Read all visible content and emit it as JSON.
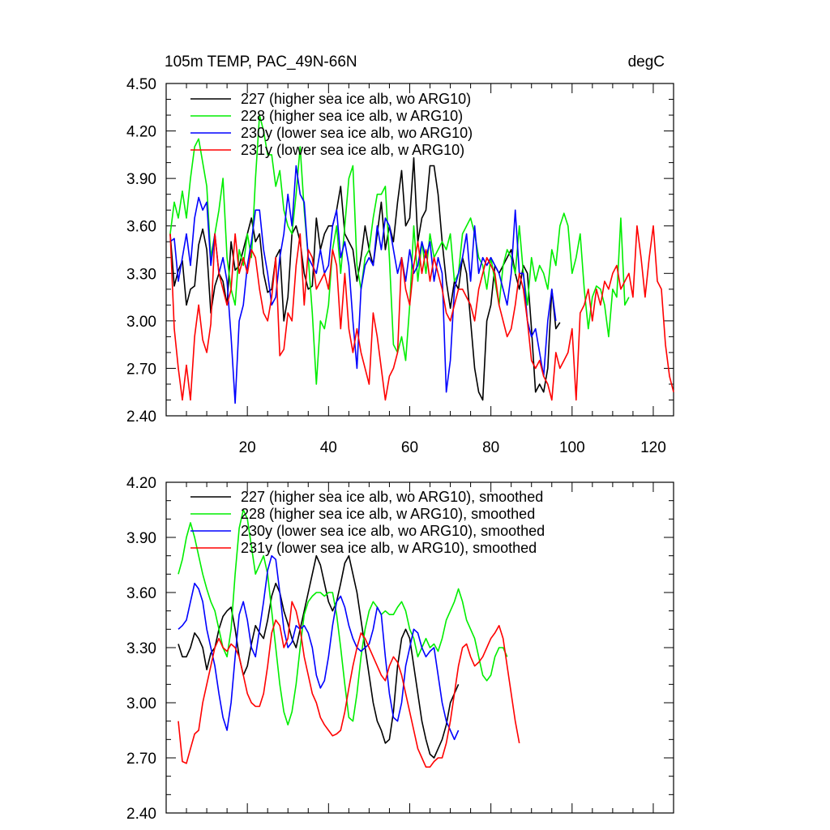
{
  "title": "105m TEMP, PAC_49N-66N",
  "units": "degC",
  "colors": {
    "227": "#000000",
    "228": "#00ee00",
    "230y": "#0000ff",
    "231y": "#ff0000"
  },
  "chart_data": [
    {
      "type": "line",
      "id": "raw",
      "xlim": [
        0,
        125
      ],
      "ylim": [
        2.4,
        4.5
      ],
      "yticks": [
        "2.40",
        "2.70",
        "3.00",
        "3.30",
        "3.60",
        "3.90",
        "4.20",
        "4.50"
      ],
      "xticks": [
        "20",
        "40",
        "60",
        "80",
        "100",
        "120"
      ],
      "legend": [
        "227 (higher sea ice alb, wo ARG10)",
        "228 (higher sea ice alb, w ARG10)",
        "230y (lower sea ice alb, wo ARG10)",
        "231y (lower sea ice alb, w ARG10)"
      ],
      "series": [
        {
          "name": "227",
          "x0": 1,
          "values": [
            3.55,
            3.22,
            3.32,
            3.38,
            3.1,
            3.2,
            3.22,
            3.48,
            3.58,
            3.45,
            3.05,
            3.22,
            3.3,
            3.25,
            3.1,
            3.5,
            3.32,
            3.35,
            3.45,
            3.55,
            3.65,
            3.5,
            3.55,
            3.3,
            3.18,
            3.2,
            3.4,
            3.45,
            3.0,
            3.15,
            3.55,
            3.6,
            3.5,
            3.3,
            3.2,
            3.22,
            3.65,
            3.45,
            3.55,
            3.6,
            3.6,
            3.7,
            3.85,
            3.55,
            3.5,
            3.45,
            3.25,
            3.4,
            3.6,
            3.45,
            3.35,
            3.55,
            3.75,
            3.45,
            3.6,
            3.5,
            3.75,
            3.95,
            3.6,
            3.65,
            4.03,
            3.5,
            3.65,
            3.7,
            3.98,
            3.98,
            3.8,
            3.5,
            3.25,
            3.08,
            3.25,
            3.2,
            3.4,
            3.3,
            3.0,
            2.7,
            2.55,
            2.5,
            3.0,
            3.1,
            3.35,
            3.3,
            3.35,
            3.4,
            3.45,
            3.3,
            3.2,
            3.35,
            3.3,
            2.95,
            2.55,
            2.6,
            2.55,
            2.7,
            3.2,
            2.95,
            2.99
          ]
        },
        {
          "name": "228",
          "x0": 1,
          "values": [
            3.55,
            3.75,
            3.65,
            3.82,
            3.65,
            3.9,
            4.1,
            4.15,
            4.0,
            3.85,
            3.4,
            3.55,
            3.7,
            3.9,
            3.4,
            3.2,
            3.1,
            3.45,
            3.35,
            3.55,
            3.4,
            3.9,
            4.3,
            4.2,
            4.05,
            4.05,
            3.85,
            3.95,
            3.7,
            3.6,
            3.55,
            3.8,
            4.1,
            3.7,
            3.4,
            3.05,
            2.6,
            3.0,
            2.95,
            3.1,
            3.45,
            3.6,
            3.3,
            3.6,
            3.9,
            3.98,
            3.35,
            3.2,
            3.4,
            3.45,
            3.65,
            3.8,
            3.8,
            3.85,
            3.4,
            2.85,
            2.8,
            2.9,
            2.75,
            3.1,
            3.6,
            3.25,
            3.5,
            3.3,
            3.55,
            3.4,
            3.45,
            3.5,
            3.45,
            3.55,
            3.25,
            3.3,
            3.55,
            3.6,
            3.65,
            3.55,
            3.4,
            3.35,
            3.2,
            3.4,
            3.25,
            3.1,
            3.35,
            3.45,
            3.4,
            3.3,
            3.6,
            3.3,
            3.1,
            3.4,
            3.25,
            3.35,
            3.3,
            3.2,
            3.45,
            3.35,
            3.6,
            3.68,
            3.6,
            3.3,
            3.4,
            3.55,
            3.2,
            2.95,
            3.15,
            3.22,
            3.2,
            3.1,
            2.9,
            3.2,
            3.15,
            3.65,
            3.1,
            3.15
          ]
        },
        {
          "name": "230y",
          "x0": 1,
          "values": [
            3.5,
            3.52,
            3.25,
            3.4,
            3.55,
            3.35,
            3.65,
            3.78,
            3.7,
            3.75,
            3.35,
            3.55,
            3.3,
            3.4,
            3.25,
            2.9,
            2.48,
            3.0,
            3.1,
            3.35,
            3.5,
            3.7,
            3.7,
            3.45,
            3.3,
            3.1,
            3.15,
            3.4,
            3.55,
            3.8,
            3.6,
            3.98,
            3.8,
            3.75,
            3.4,
            3.35,
            3.3,
            3.45,
            3.3,
            3.35,
            3.6,
            3.7,
            3.4,
            3.5,
            3.35,
            3.0,
            2.7,
            3.2,
            3.35,
            3.4,
            3.35,
            3.6,
            3.45,
            3.65,
            3.6,
            3.45,
            3.3,
            3.4,
            3.25,
            3.45,
            3.3,
            3.35,
            3.5,
            3.4,
            3.5,
            3.25,
            3.4,
            3.3,
            2.55,
            2.75,
            3.2,
            3.3,
            3.4,
            3.55,
            3.25,
            3.6,
            3.3,
            3.4,
            3.35,
            3.4,
            3.35,
            3.3,
            3.2,
            3.1,
            3.3,
            3.7,
            3.3,
            3.3,
            3.0,
            2.9,
            2.95,
            2.8,
            2.65,
            3.0,
            3.2,
            3.0
          ]
        },
        {
          "name": "231y",
          "x0": 1,
          "values": [
            3.55,
            2.95,
            2.7,
            2.5,
            2.72,
            2.5,
            2.9,
            3.1,
            2.88,
            2.8,
            2.98,
            3.55,
            3.3,
            3.2,
            3.1,
            3.2,
            3.55,
            3.3,
            3.4,
            3.3,
            3.45,
            3.4,
            3.2,
            3.05,
            3.0,
            3.15,
            3.4,
            2.78,
            2.82,
            3.05,
            3.0,
            3.35,
            3.55,
            3.1,
            3.45,
            3.4,
            3.2,
            3.25,
            3.3,
            3.2,
            3.45,
            3.35,
            2.95,
            3.3,
            2.95,
            2.8,
            2.95,
            2.8,
            2.7,
            2.6,
            3.05,
            2.9,
            2.7,
            2.5,
            2.65,
            2.7,
            2.8,
            3.4,
            3.2,
            3.1,
            3.35,
            3.5,
            3.3,
            3.45,
            3.25,
            3.4,
            3.3,
            3.2,
            3.05,
            3.0,
            3.1,
            3.2,
            3.2,
            3.15,
            3.1,
            3.0,
            3.2,
            3.3,
            3.4,
            3.35,
            3.3,
            3.1,
            3.0,
            2.9,
            2.95,
            3.1,
            3.3,
            3.2,
            3.0,
            2.75,
            2.7,
            2.75,
            2.65,
            2.6,
            2.5,
            2.8,
            2.7,
            2.75,
            2.8,
            2.95,
            2.5,
            3.05,
            3.1,
            3.2,
            3.0,
            3.2,
            3.1,
            3.25,
            3.2,
            3.3,
            3.35,
            3.2,
            3.25,
            3.3,
            3.15,
            3.6,
            3.4,
            3.15,
            3.4,
            3.6,
            3.25,
            3.2,
            2.85,
            2.65,
            2.55
          ]
        }
      ]
    },
    {
      "type": "line",
      "id": "smoothed",
      "xlim": [
        0,
        125
      ],
      "ylim": [
        2.4,
        4.2
      ],
      "yticks": [
        "2.40",
        "2.70",
        "3.00",
        "3.30",
        "3.60",
        "3.90",
        "4.20"
      ],
      "xticks": [],
      "legend": [
        "227 (higher sea ice alb, wo ARG10), smoothed",
        "228 (higher sea ice alb, w ARG10), smoothed",
        "230y (lower sea ice alb, wo ARG10), smoothed",
        "231y (lower sea ice alb, w ARG10), smoothed"
      ],
      "series": [
        {
          "name": "227",
          "x0": 3,
          "values": [
            3.32,
            3.25,
            3.25,
            3.3,
            3.38,
            3.35,
            3.3,
            3.18,
            3.27,
            3.3,
            3.4,
            3.47,
            3.5,
            3.52,
            3.4,
            3.25,
            3.15,
            3.2,
            3.32,
            3.42,
            3.38,
            3.35,
            3.45,
            3.58,
            3.65,
            3.6,
            3.5,
            3.43,
            3.35,
            3.3,
            3.4,
            3.5,
            3.6,
            3.7,
            3.8,
            3.75,
            3.65,
            3.55,
            3.5,
            3.55,
            3.65,
            3.76,
            3.8,
            3.7,
            3.6,
            3.45,
            3.3,
            3.15,
            3.0,
            2.9,
            2.85,
            2.78,
            2.8,
            2.95,
            3.2,
            3.35,
            3.4,
            3.35,
            3.2,
            3.05,
            2.9,
            2.8,
            2.72,
            2.7,
            2.75,
            2.8,
            2.88,
            3.0,
            3.05,
            3.1
          ]
        },
        {
          "name": "228",
          "x0": 3,
          "values": [
            3.7,
            3.78,
            3.9,
            3.98,
            3.9,
            3.8,
            3.7,
            3.62,
            3.55,
            3.5,
            3.4,
            3.3,
            3.25,
            3.4,
            3.7,
            3.95,
            4.05,
            4.0,
            3.85,
            3.7,
            3.75,
            3.8,
            3.7,
            3.5,
            3.3,
            3.1,
            2.95,
            2.88,
            2.95,
            3.1,
            3.3,
            3.48,
            3.55,
            3.58,
            3.6,
            3.6,
            3.58,
            3.6,
            3.6,
            3.48,
            3.3,
            3.1,
            2.92,
            2.9,
            3.05,
            3.25,
            3.4,
            3.5,
            3.55,
            3.52,
            3.48,
            3.5,
            3.48,
            3.48,
            3.52,
            3.55,
            3.5,
            3.4,
            3.35,
            3.25,
            3.3,
            3.35,
            3.3,
            3.32,
            3.28,
            3.35,
            3.45,
            3.5,
            3.55,
            3.62,
            3.55,
            3.45,
            3.4,
            3.35,
            3.25,
            3.15,
            3.12,
            3.15,
            3.25,
            3.3,
            3.3,
            3.25
          ]
        },
        {
          "name": "230y",
          "x0": 3,
          "values": [
            3.4,
            3.42,
            3.45,
            3.55,
            3.65,
            3.62,
            3.55,
            3.4,
            3.3,
            3.2,
            3.05,
            2.92,
            2.85,
            3.0,
            3.25,
            3.48,
            3.55,
            3.45,
            3.3,
            3.25,
            3.4,
            3.55,
            3.72,
            3.8,
            3.78,
            3.6,
            3.4,
            3.3,
            3.33,
            3.42,
            3.4,
            3.42,
            3.38,
            3.3,
            3.15,
            3.08,
            3.12,
            3.25,
            3.42,
            3.55,
            3.58,
            3.52,
            3.42,
            3.35,
            3.3,
            3.28,
            3.3,
            3.32,
            3.4,
            3.52,
            3.48,
            3.25,
            3.05,
            2.92,
            2.9,
            3.0,
            3.2,
            3.3,
            3.4,
            3.38,
            3.3,
            3.25,
            3.28,
            3.3,
            3.15,
            3.0,
            2.9,
            2.85,
            2.8,
            2.85
          ]
        },
        {
          "name": "231y",
          "x0": 3,
          "values": [
            2.9,
            2.68,
            2.67,
            2.75,
            2.83,
            2.85,
            3.0,
            3.1,
            3.2,
            3.3,
            3.35,
            3.3,
            3.28,
            3.32,
            3.3,
            3.25,
            3.15,
            3.05,
            3.0,
            2.98,
            2.98,
            3.05,
            3.2,
            3.38,
            3.45,
            3.42,
            3.3,
            3.35,
            3.55,
            3.5,
            3.4,
            3.25,
            3.15,
            3.05,
            3.0,
            2.92,
            2.88,
            2.85,
            2.82,
            2.83,
            2.85,
            2.95,
            3.08,
            3.2,
            3.3,
            3.38,
            3.35,
            3.3,
            3.25,
            3.2,
            3.15,
            3.12,
            3.2,
            3.25,
            3.22,
            3.15,
            3.05,
            2.95,
            2.85,
            2.75,
            2.7,
            2.65,
            2.65,
            2.68,
            2.7,
            2.7,
            2.78,
            2.9,
            3.05,
            3.2,
            3.3,
            3.32,
            3.25,
            3.2,
            3.22,
            3.25,
            3.3,
            3.35,
            3.38,
            3.42,
            3.35,
            3.2,
            3.05,
            2.9,
            2.78
          ]
        }
      ]
    }
  ]
}
